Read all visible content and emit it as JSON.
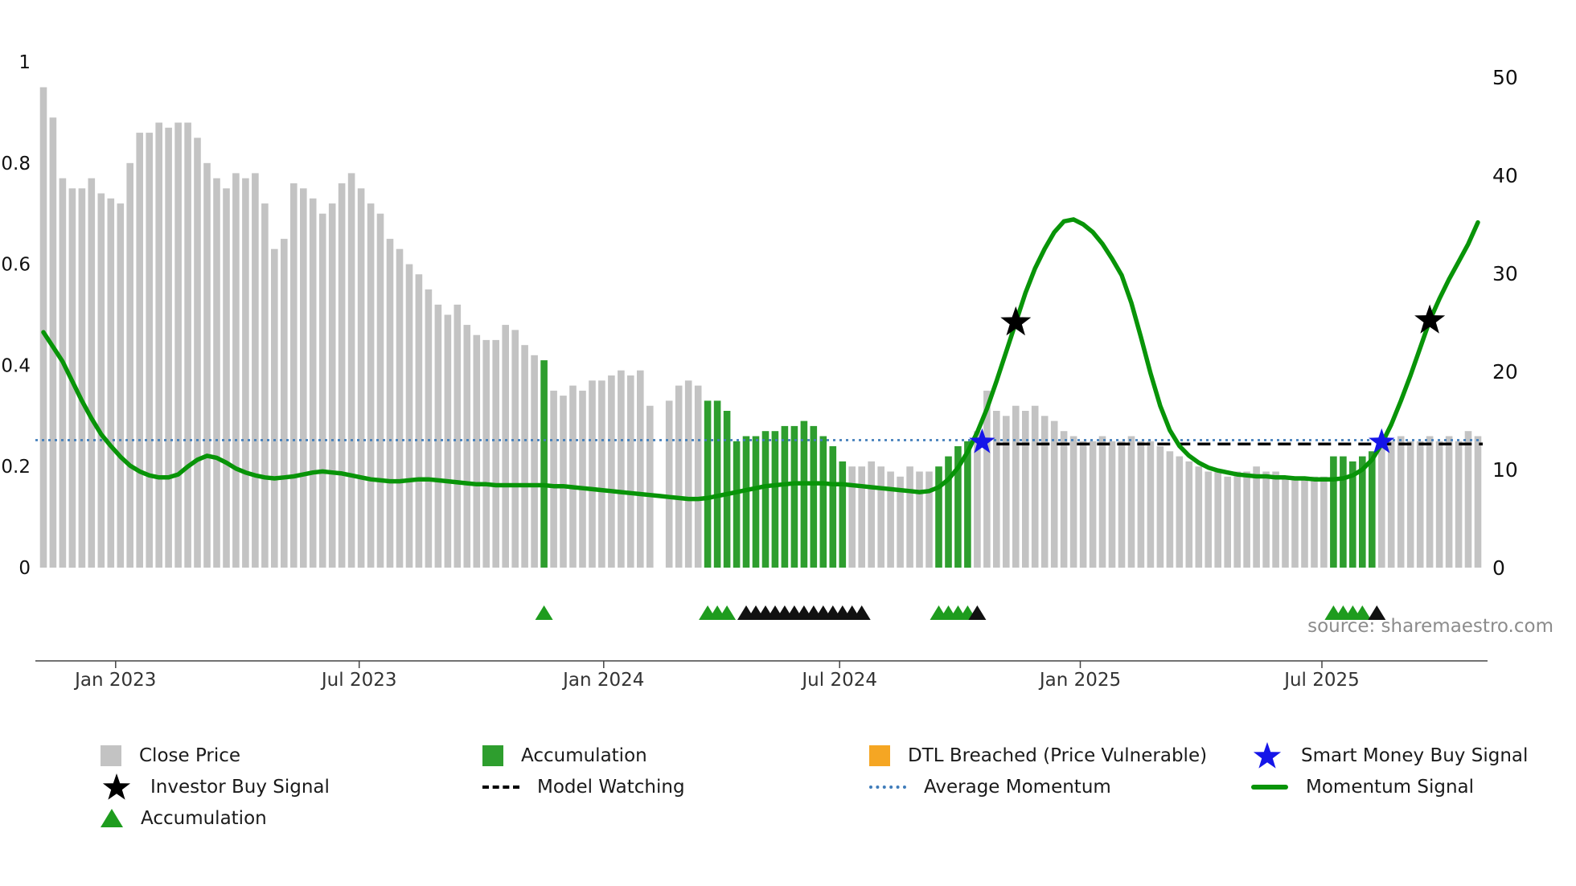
{
  "chart_data": {
    "type": "bar",
    "description": "Weekly close price bars (left axis 0-1, normalized) with accumulation bars highlighted green, momentum signal line (right axis 0-50), average momentum dotted line, model watching dashed line, buy-signal stars and accumulation/watch triangle markers. X spans Nov 2022 - Nov 2025, weekly.",
    "title": "",
    "xlabel": "",
    "ylabel": "",
    "left_axis": {
      "range": [
        0,
        1
      ],
      "ticks": [
        0,
        0.2,
        0.4,
        0.6,
        0.8,
        1
      ],
      "tick_labels": [
        "0",
        "0.2",
        "0.4",
        "0.6",
        "0.8",
        "1"
      ]
    },
    "right_axis": {
      "range": [
        0,
        50
      ],
      "ticks": [
        0,
        10,
        20,
        30,
        40,
        50
      ],
      "tick_labels": [
        "0",
        "10",
        "20",
        "30",
        "40",
        "50"
      ]
    },
    "x_axis": {
      "unit": "weekly bars, Nov 2022 - Nov 2025",
      "ticks": [
        {
          "label": "Jan 2023",
          "bar": 8.5
        },
        {
          "label": "Jul 2023",
          "bar": 33.8
        },
        {
          "label": "Jan 2024",
          "bar": 59.2
        },
        {
          "label": "Jul 2024",
          "bar": 83.7
        },
        {
          "label": "Jan 2025",
          "bar": 108.7
        },
        {
          "label": "Jul 2025",
          "bar": 133.8
        }
      ]
    },
    "close_price": {
      "values": [
        0.95,
        0.89,
        0.77,
        0.75,
        0.75,
        0.77,
        0.74,
        0.73,
        0.72,
        0.8,
        0.86,
        0.86,
        0.88,
        0.87,
        0.88,
        0.88,
        0.85,
        0.8,
        0.77,
        0.75,
        0.78,
        0.77,
        0.78,
        0.72,
        0.63,
        0.65,
        0.76,
        0.75,
        0.73,
        0.7,
        0.72,
        0.76,
        0.78,
        0.75,
        0.72,
        0.7,
        0.65,
        0.63,
        0.6,
        0.58,
        0.55,
        0.52,
        0.5,
        0.52,
        0.48,
        0.46,
        0.45,
        0.45,
        0.48,
        0.47,
        0.44,
        0.42,
        0.41,
        0.35,
        0.34,
        0.36,
        0.35,
        0.37,
        0.37,
        0.38,
        0.39,
        0.38,
        0.39,
        0.32,
        null,
        0.33,
        0.36,
        0.37,
        0.36,
        0.33,
        0.33,
        0.31,
        0.25,
        0.26,
        0.26,
        0.27,
        0.27,
        0.28,
        0.28,
        0.29,
        0.28,
        0.26,
        0.24,
        0.21,
        0.2,
        0.2,
        0.21,
        0.2,
        0.19,
        0.18,
        0.2,
        0.19,
        0.19,
        0.2,
        0.22,
        0.24,
        0.25,
        0.27,
        0.35,
        0.31,
        0.3,
        0.32,
        0.31,
        0.32,
        0.3,
        0.29,
        0.27,
        0.26,
        0.25,
        0.25,
        0.26,
        0.25,
        0.25,
        0.26,
        0.25,
        0.25,
        0.24,
        0.23,
        0.22,
        0.21,
        0.2,
        0.19,
        0.19,
        0.18,
        0.19,
        0.19,
        0.2,
        0.19,
        0.19,
        0.18,
        0.18,
        0.18,
        0.18,
        0.18,
        0.22,
        0.22,
        0.21,
        0.22,
        0.23,
        0.25,
        0.25,
        0.26,
        0.25,
        0.25,
        0.26,
        0.25,
        0.26,
        0.25,
        0.27,
        0.26
      ],
      "accumulation_bars": [
        53,
        70,
        71,
        72,
        73,
        74,
        75,
        76,
        77,
        78,
        79,
        80,
        81,
        82,
        83,
        84,
        94,
        95,
        96,
        97,
        135,
        136,
        137,
        138,
        139
      ]
    },
    "momentum_signal": {
      "values": [
        24.0,
        22.5,
        21.0,
        19.0,
        17.0,
        15.2,
        13.6,
        12.4,
        11.3,
        10.4,
        9.8,
        9.4,
        9.2,
        9.2,
        9.5,
        10.3,
        11.0,
        11.4,
        11.2,
        10.7,
        10.1,
        9.7,
        9.4,
        9.2,
        9.1,
        9.2,
        9.3,
        9.5,
        9.7,
        9.8,
        9.7,
        9.6,
        9.4,
        9.2,
        9.0,
        8.9,
        8.8,
        8.8,
        8.9,
        9.0,
        9.0,
        8.9,
        8.8,
        8.7,
        8.6,
        8.5,
        8.5,
        8.4,
        8.4,
        8.4,
        8.4,
        8.4,
        8.4,
        8.3,
        8.3,
        8.2,
        8.1,
        8.0,
        7.9,
        7.8,
        7.7,
        7.6,
        7.5,
        7.4,
        7.3,
        7.2,
        7.1,
        7.0,
        7.0,
        7.1,
        7.3,
        7.5,
        7.7,
        7.9,
        8.1,
        8.3,
        8.4,
        8.5,
        8.6,
        8.6,
        8.6,
        8.6,
        8.5,
        8.5,
        8.4,
        8.3,
        8.2,
        8.1,
        8.0,
        7.9,
        7.8,
        7.7,
        7.8,
        8.2,
        9.0,
        10.2,
        11.8,
        13.8,
        16.2,
        19.0,
        22.0,
        25.0,
        28.0,
        30.5,
        32.5,
        34.2,
        35.3,
        35.5,
        35.0,
        34.2,
        33.0,
        31.5,
        29.8,
        27.0,
        23.5,
        19.8,
        16.5,
        14.0,
        12.4,
        11.4,
        10.7,
        10.2,
        9.9,
        9.7,
        9.5,
        9.4,
        9.3,
        9.3,
        9.2,
        9.2,
        9.1,
        9.1,
        9.0,
        9.0,
        9.0,
        9.1,
        9.4,
        10.0,
        11.0,
        12.6,
        14.6,
        17.0,
        19.6,
        22.4,
        25.2,
        27.4,
        29.4,
        31.2,
        33.0,
        35.2
      ]
    },
    "average_momentum": {
      "value": 13.0
    },
    "model_watching": {
      "from_bar": 100,
      "to_bar": 150.5,
      "value": 12.6
    },
    "investor_buy_signals": [
      {
        "bar": 102,
        "value": 25.0
      },
      {
        "bar": 145,
        "value": 25.2
      }
    ],
    "smart_money_buy_signals": [
      {
        "bar": 98.5,
        "value": 12.8
      },
      {
        "bar": 140,
        "value": 12.8
      }
    ],
    "accumulation_markers": {
      "bars": [
        53,
        70,
        71,
        72,
        94,
        95,
        96,
        97,
        135,
        136,
        137,
        138
      ]
    },
    "watch_markers": {
      "bars": [
        74,
        75,
        76,
        77,
        78,
        79,
        80,
        81,
        82,
        83,
        84,
        85,
        86,
        98,
        139.5
      ]
    },
    "colors": {
      "close_price": "#c3c3c3",
      "accumulation": "#2e9e2e",
      "momentum_signal": "#089408",
      "average_momentum": "#3f7cba",
      "model_watching": "#000000",
      "investor_buy_signal": "#000000",
      "smart_money_buy_signal": "#1515e8",
      "dtl_breached": "#f5a623",
      "accumulation_marker": "#1e9c1e",
      "watch_marker": "#111111"
    },
    "source": "source: sharemaestro.com"
  },
  "legend": {
    "items": [
      {
        "label": "Close Price",
        "swatch": "square",
        "color": "#c3c3c3",
        "row": 1,
        "col": 1,
        "name": "close-price"
      },
      {
        "label": "Accumulation",
        "swatch": "square",
        "color": "#2e9e2e",
        "row": 1,
        "col": 2,
        "name": "accumulation"
      },
      {
        "label": "DTL Breached (Price Vulnerable)",
        "swatch": "square",
        "color": "#f5a623",
        "row": 1,
        "col": 3,
        "name": "dtl-breached"
      },
      {
        "label": "Smart Money Buy Signal",
        "swatch": "star",
        "color": "#1515e8",
        "row": 1,
        "col": 4,
        "name": "smart-money-buy-signal"
      },
      {
        "label": "Investor Buy Signal",
        "swatch": "star",
        "color": "#000000",
        "row": 2,
        "col": 1,
        "name": "investor-buy-signal"
      },
      {
        "label": "Model Watching",
        "swatch": "dashed-line",
        "color": "#000000",
        "row": 2,
        "col": 2,
        "name": "model-watching"
      },
      {
        "label": "Average Momentum",
        "swatch": "dotted-line",
        "color": "#3f7cba",
        "row": 2,
        "col": 3,
        "name": "average-momentum"
      },
      {
        "label": "Momentum Signal",
        "swatch": "solid-line",
        "color": "#089408",
        "row": 2,
        "col": 4,
        "name": "momentum-signal"
      },
      {
        "label": "Accumulation",
        "swatch": "triangle",
        "color": "#1e9c1e",
        "row": 3,
        "col": 1,
        "name": "accumulation-marker"
      }
    ]
  }
}
